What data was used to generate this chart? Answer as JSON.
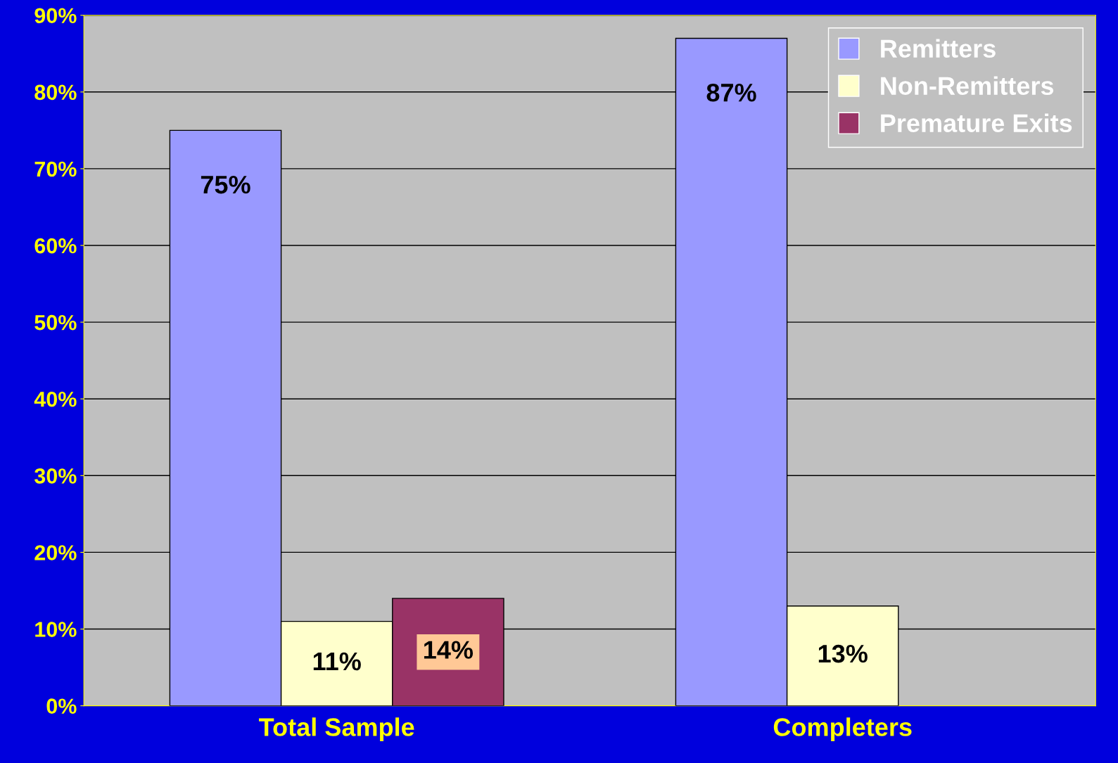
{
  "chart_data": {
    "type": "bar",
    "categories": [
      "Total Sample",
      "Completers"
    ],
    "series": [
      {
        "name": "Remitters",
        "color": "#9999ff",
        "values": [
          75,
          87
        ],
        "value_labels": [
          "75%",
          "87%"
        ]
      },
      {
        "name": "Non-Remitters",
        "color": "#ffffcc",
        "values": [
          11,
          13
        ],
        "value_labels": [
          "11%",
          "13%"
        ]
      },
      {
        "name": "Premature Exits",
        "color": "#993366",
        "values": [
          14,
          null
        ],
        "value_labels": [
          "14%",
          null
        ]
      }
    ],
    "ylim": [
      0,
      90
    ],
    "yticks": [
      {
        "value": 0,
        "label": "0%"
      },
      {
        "value": 10,
        "label": "10%"
      },
      {
        "value": 20,
        "label": "20%"
      },
      {
        "value": 30,
        "label": "30%"
      },
      {
        "value": 40,
        "label": "40%"
      },
      {
        "value": 50,
        "label": "50%"
      },
      {
        "value": 60,
        "label": "60%"
      },
      {
        "value": 70,
        "label": "70%"
      },
      {
        "value": 80,
        "label": "80%"
      },
      {
        "value": 90,
        "label": "90%"
      }
    ],
    "grid": "y",
    "legend": "top right"
  }
}
